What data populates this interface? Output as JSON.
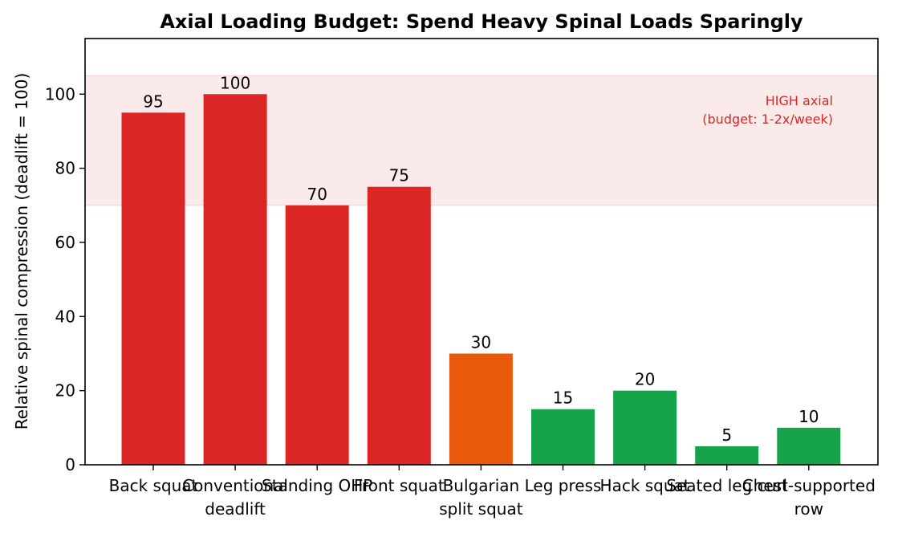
{
  "chart_data": {
    "type": "bar",
    "title": "Axial Loading Budget: Spend Heavy Spinal Loads Sparingly",
    "xlabel": "",
    "ylabel": "Relative spinal compression (deadlift = 100)",
    "ylim": [
      0,
      115
    ],
    "yticks": [
      0,
      20,
      40,
      60,
      80,
      100
    ],
    "grid": false,
    "categories": [
      [
        "Back squat"
      ],
      [
        "Conventional",
        "deadlift"
      ],
      [
        "Standing OHP"
      ],
      [
        "Front squat"
      ],
      [
        "Bulgarian",
        "split squat"
      ],
      [
        "Leg press"
      ],
      [
        "Hack squat"
      ],
      [
        "Seated leg curl"
      ],
      [
        "Chest-supported",
        "row"
      ]
    ],
    "values": [
      95,
      100,
      70,
      75,
      30,
      15,
      20,
      5,
      10
    ],
    "bar_colors": [
      "#dc2626",
      "#dc2626",
      "#dc2626",
      "#dc2626",
      "#ea580c",
      "#16a34a",
      "#16a34a",
      "#16a34a",
      "#16a34a"
    ],
    "band": {
      "from": 70,
      "to": 105,
      "color": "#fbeaea",
      "label_lines": [
        "HIGH axial",
        "(budget: 1-2x/week)"
      ],
      "label_color": "#dc2626"
    }
  }
}
